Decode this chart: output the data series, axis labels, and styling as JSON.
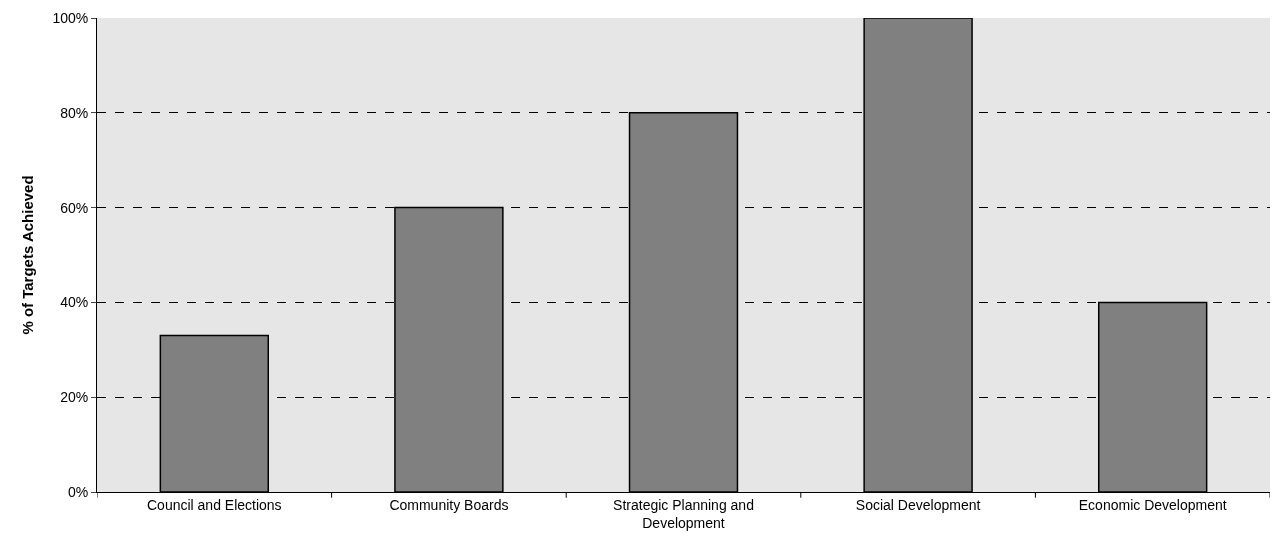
{
  "chart_data": {
    "type": "bar",
    "ylabel": "% of Targets Achieved",
    "categories": [
      "Council and Elections",
      "Community Boards",
      "Strategic Planning and Development",
      "Social Development",
      "Economic Development"
    ],
    "values": [
      33,
      60,
      80,
      100,
      40
    ],
    "color": "#808080",
    "ylim": [
      0,
      100
    ],
    "yticks": [
      {
        "value": 0,
        "label": "0%"
      },
      {
        "value": 20,
        "label": "20%"
      },
      {
        "value": 40,
        "label": "40%"
      },
      {
        "value": 60,
        "label": "60%"
      },
      {
        "value": 80,
        "label": "80%"
      },
      {
        "value": 100,
        "label": "100%"
      }
    ],
    "grid": "y",
    "legend": false
  }
}
